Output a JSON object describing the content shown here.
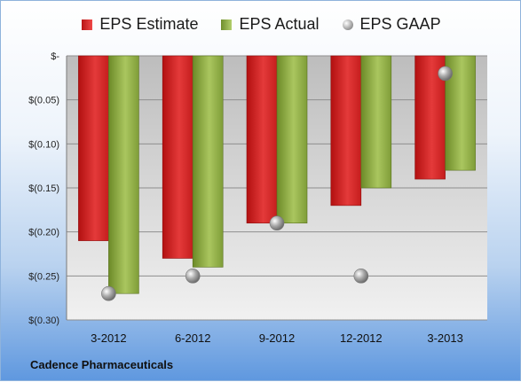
{
  "company": "Cadence Pharmaceuticals",
  "legend": {
    "estimate": "EPS Estimate",
    "actual": "EPS Actual",
    "gaap": "EPS GAAP"
  },
  "chart_data": {
    "type": "bar",
    "categories": [
      "3-2012",
      "6-2012",
      "9-2012",
      "12-2012",
      "3-2013"
    ],
    "series": [
      {
        "name": "EPS Estimate",
        "type": "bar",
        "color": "#d42a2a",
        "values": [
          -0.21,
          -0.23,
          -0.19,
          -0.17,
          -0.14
        ]
      },
      {
        "name": "EPS Actual",
        "type": "bar",
        "color": "#93b146",
        "values": [
          -0.27,
          -0.24,
          -0.19,
          -0.15,
          -0.13
        ]
      },
      {
        "name": "EPS GAAP",
        "type": "scatter",
        "color": "#a0a0a0",
        "values": [
          -0.27,
          -0.25,
          -0.19,
          -0.25,
          -0.02
        ]
      }
    ],
    "ylim": [
      -0.3,
      0
    ],
    "yticks": [
      0,
      -0.05,
      -0.1,
      -0.15,
      -0.2,
      -0.25,
      -0.3
    ],
    "ytick_labels": [
      "$-",
      "$(0.05)",
      "$(0.10)",
      "$(0.15)",
      "$(0.20)",
      "$(0.25)",
      "$(0.30)"
    ],
    "grid": true,
    "legend_position": "top"
  }
}
